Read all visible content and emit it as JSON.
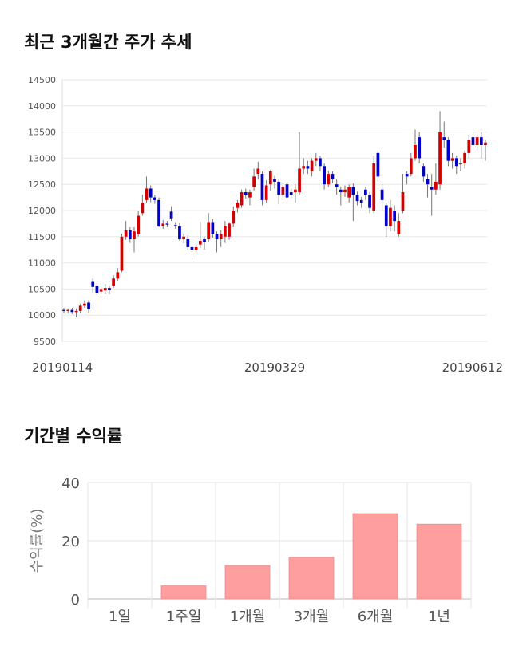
{
  "sections": {
    "price_trend_title": "최근 3개월간 주가 추세",
    "returns_title": "기간별 수익률"
  },
  "colors": {
    "up": "#d40000",
    "down": "#0000cc",
    "bar": "#ff9e9e",
    "grid": "#e8e8e8"
  },
  "chart_data": [
    {
      "type": "candlestick",
      "title": "최근 3개월간 주가 추세",
      "ylim": [
        9500,
        14500
      ],
      "yticks": [
        9500,
        10000,
        10500,
        11000,
        11500,
        12000,
        12500,
        13000,
        13500,
        14000,
        14500
      ],
      "xtick_labels": [
        "20190114",
        "20190329",
        "20190612"
      ],
      "xtick_index": [
        0,
        51,
        102
      ],
      "candles": [
        [
          10100,
          10080,
          10140,
          10040
        ],
        [
          10080,
          10100,
          10130,
          10030
        ],
        [
          10100,
          10060,
          10140,
          10020
        ],
        [
          10060,
          10080,
          10130,
          9960
        ],
        [
          10080,
          10180,
          10220,
          10040
        ],
        [
          10180,
          10220,
          10280,
          10140
        ],
        [
          10240,
          10110,
          10290,
          10040
        ],
        [
          10650,
          10540,
          10700,
          10420
        ],
        [
          10560,
          10420,
          10620,
          10380
        ],
        [
          10450,
          10500,
          10560,
          10400
        ],
        [
          10470,
          10520,
          10600,
          10400
        ],
        [
          10520,
          10480,
          10560,
          10400
        ],
        [
          10560,
          10700,
          10760,
          10520
        ],
        [
          10700,
          10820,
          10900,
          10660
        ],
        [
          10850,
          11500,
          11560,
          10820
        ],
        [
          11500,
          11620,
          11800,
          11440
        ],
        [
          11620,
          11450,
          11680,
          11380
        ],
        [
          11450,
          11600,
          11680,
          11200
        ],
        [
          11550,
          11900,
          12000,
          11500
        ],
        [
          11950,
          12150,
          12300,
          11900
        ],
        [
          12200,
          12420,
          12650,
          12150
        ],
        [
          12420,
          12250,
          12480,
          12160
        ],
        [
          12250,
          12200,
          12300,
          12130
        ],
        [
          12200,
          11700,
          12250,
          11680
        ],
        [
          11700,
          11750,
          11820,
          11650
        ],
        [
          11750,
          11730,
          11800,
          11680
        ],
        [
          11980,
          11850,
          12080,
          11800
        ],
        [
          11720,
          11700,
          11780,
          11650
        ],
        [
          11700,
          11450,
          11760,
          11420
        ],
        [
          11450,
          11500,
          11560,
          11380
        ],
        [
          11450,
          11300,
          11520,
          11250
        ],
        [
          11300,
          11250,
          11400,
          11060
        ],
        [
          11250,
          11300,
          11360,
          11180
        ],
        [
          11350,
          11420,
          11780,
          11280
        ],
        [
          11450,
          11400,
          11500,
          11250
        ],
        [
          11450,
          11780,
          11950,
          11400
        ],
        [
          11780,
          11550,
          11840,
          11480
        ],
        [
          11550,
          11450,
          11600,
          11200
        ],
        [
          11450,
          11550,
          11620,
          11300
        ],
        [
          11500,
          11700,
          11800,
          11380
        ],
        [
          11500,
          11750,
          11780,
          11440
        ],
        [
          11750,
          12000,
          12080,
          11680
        ],
        [
          12050,
          12150,
          12200,
          11960
        ],
        [
          12100,
          12350,
          12400,
          12050
        ],
        [
          12350,
          12300,
          12420,
          12230
        ],
        [
          12250,
          12350,
          12400,
          12100
        ],
        [
          12450,
          12650,
          12800,
          12380
        ],
        [
          12700,
          12800,
          12930,
          12600
        ],
        [
          12700,
          12200,
          12750,
          12100
        ],
        [
          12200,
          12480,
          12580,
          12150
        ],
        [
          12500,
          12750,
          12780,
          12380
        ],
        [
          12600,
          12550,
          12660,
          12420
        ],
        [
          12550,
          12300,
          12600,
          12120
        ],
        [
          12300,
          12450,
          12520,
          12200
        ],
        [
          12500,
          12250,
          12560,
          12150
        ],
        [
          12350,
          12300,
          12420,
          12240
        ],
        [
          12350,
          12400,
          12500,
          12150
        ],
        [
          12350,
          12800,
          13500,
          12300
        ],
        [
          12800,
          12850,
          13000,
          12700
        ],
        [
          12850,
          12800,
          12950,
          12700
        ],
        [
          12750,
          12950,
          13000,
          12650
        ],
        [
          12950,
          13000,
          13100,
          12850
        ],
        [
          13000,
          12850,
          13050,
          12750
        ],
        [
          12850,
          12500,
          12900,
          12400
        ],
        [
          12500,
          12700,
          12760,
          12450
        ],
        [
          12700,
          12600,
          12750,
          12520
        ],
        [
          12500,
          12450,
          12600,
          12300
        ],
        [
          12400,
          12350,
          12450,
          12100
        ],
        [
          12350,
          12400,
          12480,
          12260
        ],
        [
          12250,
          12450,
          12500,
          12150
        ],
        [
          12450,
          12300,
          12520,
          11800
        ],
        [
          12300,
          12180,
          12360,
          12100
        ],
        [
          12200,
          12150,
          12260,
          12050
        ],
        [
          12400,
          12300,
          12450,
          12200
        ],
        [
          12300,
          12050,
          12350,
          11950
        ],
        [
          12000,
          12900,
          13050,
          11950
        ],
        [
          13100,
          12650,
          13150,
          12550
        ],
        [
          12400,
          12200,
          12500,
          12000
        ],
        [
          12100,
          11700,
          12150,
          11500
        ],
        [
          11700,
          12050,
          12200,
          11600
        ],
        [
          12000,
          11800,
          12100,
          11600
        ],
        [
          11550,
          11800,
          11950,
          11500
        ],
        [
          12000,
          12350,
          12700,
          11950
        ],
        [
          12700,
          12650,
          12750,
          12500
        ],
        [
          12700,
          13000,
          13100,
          12650
        ],
        [
          13000,
          13250,
          13550,
          12950
        ],
        [
          13400,
          13000,
          13500,
          12900
        ],
        [
          12850,
          12650,
          12900,
          12550
        ],
        [
          12600,
          12500,
          12700,
          12250
        ],
        [
          12450,
          12400,
          12700,
          11900
        ],
        [
          12400,
          12550,
          12900,
          12300
        ],
        [
          12500,
          13500,
          13900,
          12400
        ],
        [
          13400,
          13350,
          13700,
          13200
        ],
        [
          13350,
          12950,
          13400,
          12850
        ],
        [
          12950,
          13000,
          13100,
          12800
        ],
        [
          13000,
          12850,
          13050,
          12700
        ],
        [
          12900,
          12900,
          13000,
          12750
        ],
        [
          12900,
          13100,
          13150,
          12800
        ],
        [
          13100,
          13350,
          13450,
          13000
        ],
        [
          13400,
          13250,
          13500,
          13150
        ],
        [
          13250,
          13400,
          13450,
          13150
        ],
        [
          13400,
          13250,
          13500,
          13000
        ],
        [
          13250,
          13300,
          13350,
          12950
        ]
      ]
    },
    {
      "type": "bar",
      "title": "기간별 수익률",
      "ylabel": "수익률(%)",
      "categories": [
        "1일",
        "1주일",
        "1개월",
        "3개월",
        "6개월",
        "1년"
      ],
      "values": [
        0,
        4.5,
        11.5,
        14.3,
        29.3,
        25.7
      ],
      "ylim": [
        0,
        40
      ],
      "yticks": [
        0,
        20,
        40
      ]
    }
  ]
}
